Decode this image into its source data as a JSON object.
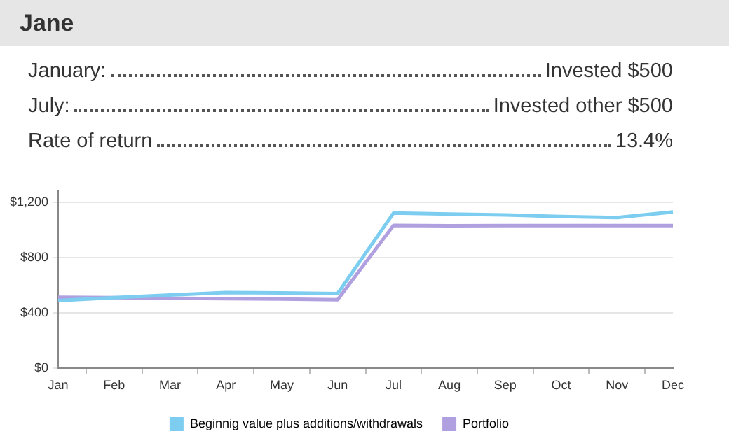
{
  "chart_data": {
    "type": "line",
    "title": "Jane",
    "annotations": [
      "January:",
      "Invested $500",
      "July:",
      "Invested other $500",
      "Rate of return",
      "13.4%"
    ],
    "categories": [
      "Jan",
      "Feb",
      "Mar",
      "Apr",
      "May",
      "Jun",
      "Jul",
      "Aug",
      "Sep",
      "Oct",
      "Nov",
      "Dec"
    ],
    "series": [
      {
        "name": "Beginnig value plus additions/withdrawals",
        "color": "#7dcdf0",
        "values": [
          489,
          510,
          530,
          547,
          544,
          540,
          1121,
          1114,
          1107,
          1096,
          1089,
          1129
        ]
      },
      {
        "name": "Portfolio",
        "color": "#b0a0e0",
        "values": [
          513,
          510,
          506,
          503,
          500,
          496,
          1032,
          1029,
          1030,
          1030,
          1030,
          1030
        ]
      }
    ],
    "ylim": [
      0,
      1280
    ],
    "yticks": [
      {
        "value": 0,
        "label": "$0"
      },
      {
        "value": 400,
        "label": "$400"
      },
      {
        "value": 800,
        "label": "$800"
      },
      {
        "value": 1200,
        "label": "$1,200"
      }
    ],
    "grid": "y",
    "legend": "bottom",
    "marker": "none",
    "line_style": "solid"
  }
}
